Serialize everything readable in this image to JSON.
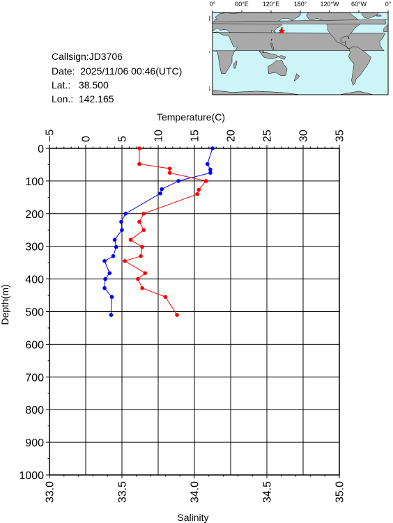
{
  "info": {
    "callsign": "Callsign:JD3706",
    "date": "Date:  2025/11/06 00:46(UTC)",
    "lat": "Lat.:   38.500",
    "lon": "Lon.:  142.165"
  },
  "map": {
    "lon_labels": [
      "0°",
      "60°E",
      "120°E",
      "180°",
      "120°W",
      "60°W",
      "0°"
    ],
    "lat_labels": [
      "60°N",
      "0°",
      "60°S"
    ],
    "station": {
      "lat": 38.5,
      "lon": 142.165
    },
    "ocean_color": "#cdf5f8",
    "land_color": "#a9a9a9",
    "marker_color": "#ff0000"
  },
  "chart_data": {
    "type": "line",
    "top_axis": {
      "label": "Temperature(C)",
      "range": [
        -5,
        35
      ],
      "ticks": [
        -5,
        0,
        5,
        10,
        15,
        20,
        25,
        30,
        35
      ]
    },
    "bottom_axis": {
      "label": "Salinity",
      "range": [
        33.0,
        35.0
      ],
      "ticks": [
        "33.0",
        "33.5",
        "34.0",
        "34.5",
        "35.0"
      ]
    },
    "y_axis": {
      "label": "Depth(m)",
      "range": [
        0,
        1000
      ],
      "inverted": true,
      "ticks": [
        0,
        100,
        200,
        300,
        400,
        500,
        600,
        700,
        800,
        900,
        1000
      ]
    },
    "grid": true,
    "series": [
      {
        "variable": "temperature",
        "axis": "top",
        "color": "#0000ff",
        "points": [
          {
            "x": 17.5,
            "y": 0
          },
          {
            "x": 16.8,
            "y": 48
          },
          {
            "x": 17.2,
            "y": 65
          },
          {
            "x": 17.2,
            "y": 75
          },
          {
            "x": 12.8,
            "y": 100
          },
          {
            "x": 10.5,
            "y": 125
          },
          {
            "x": 10.3,
            "y": 138
          },
          {
            "x": 5.5,
            "y": 200
          },
          {
            "x": 4.9,
            "y": 225
          },
          {
            "x": 5.0,
            "y": 250
          },
          {
            "x": 4.0,
            "y": 280
          },
          {
            "x": 4.2,
            "y": 302
          },
          {
            "x": 3.8,
            "y": 330
          },
          {
            "x": 2.6,
            "y": 345
          },
          {
            "x": 3.3,
            "y": 382
          },
          {
            "x": 2.7,
            "y": 400
          },
          {
            "x": 2.6,
            "y": 428
          },
          {
            "x": 3.6,
            "y": 455
          },
          {
            "x": 3.5,
            "y": 510
          }
        ]
      },
      {
        "variable": "salinity",
        "axis": "bottom",
        "color": "#ff0000",
        "points": [
          {
            "x": 33.62,
            "y": 0
          },
          {
            "x": 33.62,
            "y": 48
          },
          {
            "x": 33.83,
            "y": 62
          },
          {
            "x": 33.83,
            "y": 75
          },
          {
            "x": 34.08,
            "y": 100
          },
          {
            "x": 34.03,
            "y": 127
          },
          {
            "x": 34.02,
            "y": 140
          },
          {
            "x": 33.65,
            "y": 200
          },
          {
            "x": 33.62,
            "y": 225
          },
          {
            "x": 33.65,
            "y": 250
          },
          {
            "x": 33.56,
            "y": 280
          },
          {
            "x": 33.64,
            "y": 302
          },
          {
            "x": 33.63,
            "y": 330
          },
          {
            "x": 33.52,
            "y": 345
          },
          {
            "x": 33.66,
            "y": 382
          },
          {
            "x": 33.61,
            "y": 400
          },
          {
            "x": 33.64,
            "y": 428
          },
          {
            "x": 33.8,
            "y": 455
          },
          {
            "x": 33.88,
            "y": 510
          }
        ]
      }
    ]
  }
}
